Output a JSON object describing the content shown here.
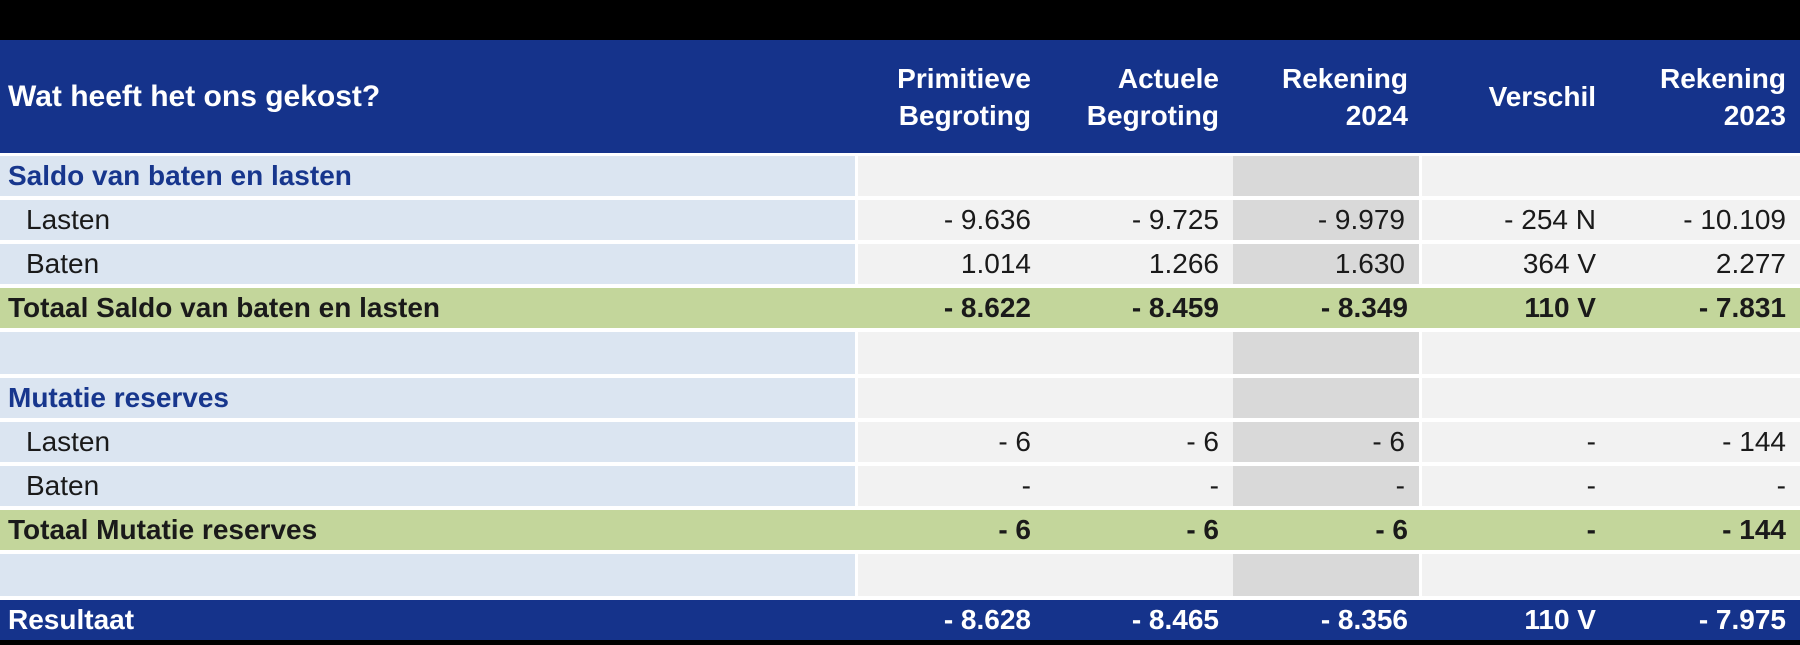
{
  "table": {
    "header": {
      "title": "Wat heeft het ons gekost?",
      "columns": [
        {
          "label": "Primitieve\nBegroting"
        },
        {
          "label": "Actuele\nBegroting"
        },
        {
          "label": "Rekening\n2024"
        },
        {
          "label": "Verschil"
        },
        {
          "label": "Rekening\n2023"
        }
      ]
    },
    "rows": [
      {
        "type": "section",
        "label": "Saldo van baten en lasten",
        "values": [
          "",
          "",
          "",
          "",
          ""
        ]
      },
      {
        "type": "data",
        "label": "Lasten",
        "values": [
          "- 9.636",
          "- 9.725",
          "- 9.979",
          "- 254 N",
          "- 10.109"
        ]
      },
      {
        "type": "data",
        "label": "Baten",
        "values": [
          "1.014",
          "1.266",
          "1.630",
          "364 V",
          "2.277"
        ]
      },
      {
        "type": "total",
        "label": "Totaal Saldo van baten en lasten",
        "values": [
          "- 8.622",
          "- 8.459",
          "- 8.349",
          "110 V",
          "- 7.831"
        ]
      },
      {
        "type": "spacer",
        "label": "",
        "values": [
          "",
          "",
          "",
          "",
          ""
        ]
      },
      {
        "type": "section",
        "label": "Mutatie reserves",
        "values": [
          "",
          "",
          "",
          "",
          ""
        ]
      },
      {
        "type": "data",
        "label": "Lasten",
        "values": [
          "- 6",
          "- 6",
          "- 6",
          "-",
          "- 144"
        ]
      },
      {
        "type": "data",
        "label": "Baten",
        "values": [
          "-",
          "-",
          "-",
          "-",
          "-"
        ]
      },
      {
        "type": "total",
        "label": "Totaal Mutatie reserves",
        "values": [
          "- 6",
          "- 6",
          "- 6",
          "-",
          "- 144"
        ]
      },
      {
        "type": "spacer",
        "label": "",
        "values": [
          "",
          "",
          "",
          "",
          ""
        ]
      },
      {
        "type": "result",
        "label": "Resultaat",
        "values": [
          "- 8.628",
          "- 8.465",
          "- 8.356",
          "110 V",
          "- 7.975"
        ]
      }
    ]
  },
  "colors": {
    "header_bg": "#15338b",
    "section_label_text": "#17368d",
    "total_row_bg": "#c3d69b",
    "label_column_bg": "#dbe5f1",
    "value_cell_bg": "#f2f2f2",
    "rekening_2024_highlight_bg": "#d9d9d9",
    "result_row_bg": "#15338b",
    "frame_bg": "#000000"
  }
}
